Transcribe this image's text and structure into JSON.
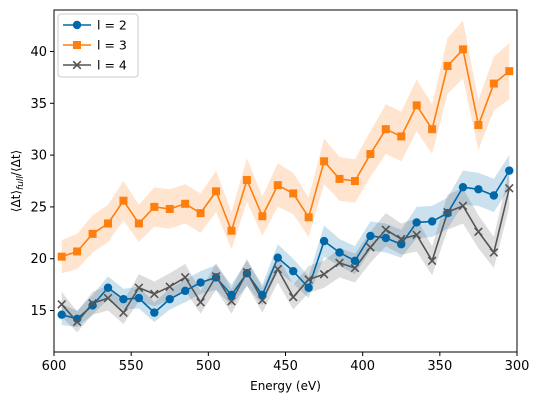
{
  "chart_data": {
    "type": "line",
    "xlabel": "Energy (eV)",
    "ylabel": "⟨Δt⟩full/⟨Δt⟩",
    "ylabel_main": "⟨Δt⟩",
    "ylabel_sub": "full",
    "ylabel_tail": "/⟨Δt⟩",
    "xlim": [
      600,
      300
    ],
    "ylim": [
      11,
      44
    ],
    "x_reversed": true,
    "xticks": [
      600,
      550,
      500,
      450,
      400,
      350,
      300
    ],
    "yticks": [
      15,
      20,
      25,
      30,
      35,
      40
    ],
    "grid": false,
    "legend_position": "top-left",
    "x": [
      595,
      585,
      575,
      565,
      555,
      545,
      535,
      525,
      515,
      505,
      495,
      485,
      475,
      465,
      455,
      445,
      435,
      425,
      415,
      405,
      395,
      385,
      375,
      365,
      355,
      345,
      335,
      325,
      315,
      305
    ],
    "series": [
      {
        "name": "l = 2",
        "color": "#0068a8",
        "marker": "circle",
        "values": [
          14.6,
          14.2,
          15.5,
          17.2,
          16.1,
          16.2,
          14.8,
          16.1,
          16.9,
          17.7,
          18.2,
          16.5,
          18.6,
          16.5,
          20.1,
          18.8,
          17.2,
          21.7,
          20.6,
          19.8,
          22.2,
          22.0,
          21.4,
          23.5,
          23.6,
          24.4,
          26.9,
          26.7,
          26.1,
          28.5
        ],
        "lower": [
          13.6,
          13.4,
          14.6,
          16.1,
          15.1,
          15.2,
          13.9,
          15.1,
          15.8,
          16.6,
          17.0,
          15.5,
          17.4,
          15.5,
          18.8,
          17.6,
          16.2,
          20.2,
          19.3,
          18.5,
          20.8,
          20.6,
          20.1,
          22.0,
          22.1,
          22.9,
          25.2,
          25.1,
          24.5,
          26.8
        ],
        "upper": [
          15.6,
          15.0,
          16.5,
          18.3,
          17.1,
          17.3,
          15.8,
          17.1,
          18.0,
          18.8,
          19.4,
          17.5,
          19.8,
          17.5,
          21.4,
          20.0,
          18.3,
          23.2,
          21.9,
          21.2,
          23.6,
          23.4,
          22.8,
          25.0,
          25.1,
          25.9,
          28.5,
          28.3,
          27.7,
          30.0
        ]
      },
      {
        "name": "l = 3",
        "color": "#ff7f0e",
        "marker": "square",
        "values": [
          20.2,
          20.7,
          22.4,
          23.4,
          25.6,
          23.4,
          25.0,
          24.8,
          25.3,
          24.4,
          26.5,
          22.7,
          27.6,
          24.1,
          27.1,
          26.3,
          24.0,
          29.4,
          27.7,
          27.5,
          30.1,
          32.5,
          31.8,
          34.8,
          32.5,
          38.6,
          40.2,
          32.9,
          36.9,
          38.1
        ],
        "lower": [
          18.6,
          19.0,
          20.6,
          21.6,
          23.7,
          21.6,
          23.1,
          22.9,
          23.4,
          22.5,
          24.5,
          20.9,
          25.5,
          22.2,
          25.0,
          24.3,
          22.1,
          27.2,
          25.6,
          25.4,
          27.9,
          30.1,
          29.4,
          32.3,
          30.1,
          35.9,
          37.4,
          30.5,
          34.3,
          35.4
        ],
        "upper": [
          21.8,
          22.4,
          24.2,
          25.2,
          27.5,
          25.2,
          26.9,
          26.7,
          27.2,
          26.3,
          28.5,
          24.5,
          29.7,
          26.0,
          29.2,
          28.3,
          25.9,
          31.6,
          29.8,
          29.6,
          32.3,
          34.9,
          34.2,
          37.3,
          34.9,
          41.3,
          43.0,
          35.3,
          39.5,
          40.8
        ]
      },
      {
        "name": "l = 4",
        "color": "#555555",
        "marker": "x",
        "values": [
          15.6,
          13.9,
          15.7,
          16.2,
          14.8,
          17.2,
          16.6,
          17.3,
          18.2,
          15.8,
          18.3,
          15.9,
          18.7,
          16.0,
          19.0,
          16.3,
          18.0,
          18.5,
          19.6,
          19.1,
          21.1,
          22.8,
          21.9,
          22.3,
          19.8,
          24.5,
          25.1,
          22.6,
          20.6,
          26.8
        ],
        "lower": [
          14.4,
          12.9,
          14.6,
          15.0,
          13.7,
          15.9,
          15.4,
          16.0,
          16.9,
          14.7,
          17.0,
          14.7,
          17.4,
          14.8,
          17.7,
          15.1,
          16.7,
          17.2,
          18.2,
          17.7,
          19.6,
          21.2,
          20.4,
          20.7,
          18.4,
          22.8,
          23.4,
          21.0,
          19.1,
          25.0
        ],
        "upper": [
          16.8,
          14.9,
          16.8,
          17.4,
          15.9,
          18.5,
          17.8,
          18.6,
          19.5,
          16.9,
          19.6,
          17.1,
          20.0,
          17.2,
          20.3,
          17.5,
          19.3,
          19.8,
          21.0,
          20.5,
          22.6,
          24.4,
          23.4,
          23.9,
          21.2,
          26.2,
          26.8,
          24.2,
          22.1,
          28.6
        ]
      }
    ]
  }
}
